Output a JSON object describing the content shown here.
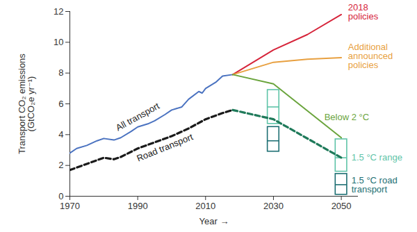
{
  "chart_data": {
    "type": "line",
    "xlabel": "Year",
    "ylabel": "Transport CO₂ emissions\n(GtCO₂e yr⁻¹)",
    "xlim": [
      1970,
      2055
    ],
    "ylim": [
      0,
      12
    ],
    "xticks": [
      1970,
      1990,
      2010,
      2030,
      2050
    ],
    "yticks": [
      0,
      2,
      4,
      6,
      8,
      10,
      12
    ],
    "grid": false,
    "series": [
      {
        "name": "All transport",
        "color": "#4a72c0",
        "line_style": "solid",
        "x": [
          1970,
          1972,
          1975,
          1978,
          1980,
          1983,
          1985,
          1988,
          1990,
          1993,
          1995,
          1998,
          2000,
          2003,
          2005,
          2008,
          2009,
          2010,
          2013,
          2015,
          2018
        ],
        "values": [
          2.8,
          3.1,
          3.3,
          3.6,
          3.75,
          3.65,
          3.8,
          4.2,
          4.5,
          4.7,
          4.9,
          5.3,
          5.6,
          5.8,
          6.3,
          6.8,
          6.7,
          7.0,
          7.4,
          7.8,
          7.9
        ]
      },
      {
        "name": "Road transport",
        "color": "#1a1a1a",
        "line_style": "dashed",
        "x": [
          1970,
          1975,
          1980,
          1983,
          1985,
          1990,
          1995,
          2000,
          2005,
          2010,
          2015,
          2018
        ],
        "values": [
          1.7,
          2.1,
          2.5,
          2.4,
          2.55,
          3.1,
          3.5,
          3.9,
          4.4,
          5.0,
          5.4,
          5.6
        ]
      },
      {
        "name": "2018 policies",
        "color": "#d6243a",
        "line_style": "solid",
        "x": [
          2018,
          2030,
          2040,
          2050
        ],
        "values": [
          7.9,
          9.5,
          10.5,
          11.8
        ]
      },
      {
        "name": "Additional announced policies",
        "color": "#e8a040",
        "line_style": "solid",
        "x": [
          2018,
          2030,
          2040,
          2050
        ],
        "values": [
          7.9,
          8.7,
          8.9,
          9.0
        ]
      },
      {
        "name": "Below 2 °C",
        "color": "#6aa43c",
        "line_style": "solid",
        "x": [
          2018,
          2030,
          2050
        ],
        "values": [
          7.9,
          7.3,
          3.8
        ]
      },
      {
        "color": "#1f7a5a",
        "line_style": "dashed",
        "x": [
          2018,
          2030,
          2050
        ],
        "values": [
          5.6,
          5.0,
          2.5
        ]
      }
    ],
    "ranges": [
      {
        "name": "1.5 °C range",
        "color": "#5fc4a8",
        "x": [
          2030,
          2050
        ],
        "low": [
          4.7,
          1.6
        ],
        "median": [
          5.8,
          2.5
        ],
        "high": [
          6.9,
          3.7
        ]
      },
      {
        "name": "1.5 °C road transport",
        "color": "#1d6f73",
        "x": [
          2030,
          2050
        ],
        "low": [
          2.9,
          0.1
        ],
        "median": [
          3.6,
          0.75
        ],
        "high": [
          4.5,
          1.45
        ]
      }
    ]
  }
}
